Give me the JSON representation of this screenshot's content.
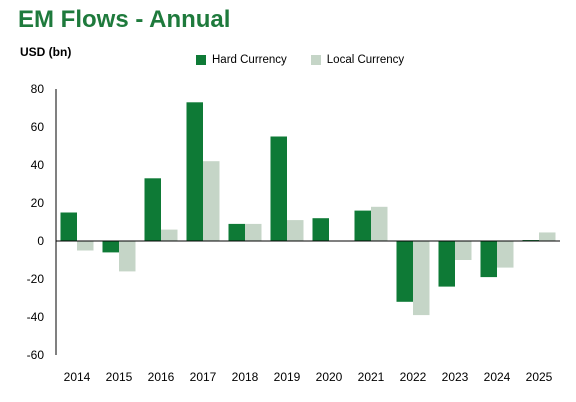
{
  "chart_data": {
    "type": "bar",
    "title": "EM Flows - Annual",
    "ylabel": "USD (bn)",
    "xlabel": "",
    "categories": [
      "2014",
      "2015",
      "2016",
      "2017",
      "2018",
      "2019",
      "2020",
      "2021",
      "2022",
      "2023",
      "2024",
      "2025"
    ],
    "series": [
      {
        "name": "Hard Currency",
        "color": "#0e7a36",
        "values": [
          15,
          -6,
          33,
          73,
          9,
          55,
          12,
          16,
          -32,
          -24,
          -19,
          0.5
        ]
      },
      {
        "name": "Local Currency",
        "color": "#c5d5c7",
        "values": [
          -5,
          -16,
          6,
          42,
          9,
          11,
          0,
          18,
          -39,
          -10,
          -14,
          4.5
        ]
      }
    ],
    "ylim": [
      -60,
      80
    ],
    "yticks": [
      80,
      60,
      40,
      20,
      0,
      -20,
      -40,
      -60
    ],
    "grid": false,
    "legend_position": "top"
  }
}
